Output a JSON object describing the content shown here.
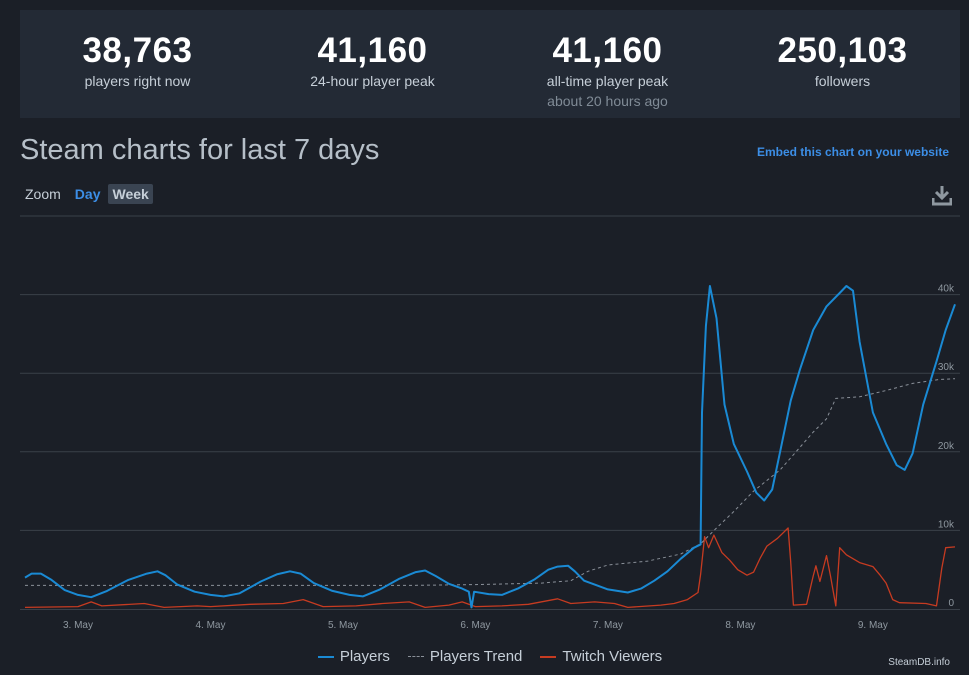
{
  "stats": [
    {
      "value": "38,763",
      "label": "players right now",
      "sub": ""
    },
    {
      "value": "41,160",
      "label": "24-hour player peak",
      "sub": ""
    },
    {
      "value": "41,160",
      "label": "all-time player peak",
      "sub": "about 20 hours ago"
    },
    {
      "value": "250,103",
      "label": "followers",
      "sub": ""
    }
  ],
  "heading": "Steam charts for last 7 days",
  "embed_link": "Embed this chart on your website",
  "zoom": {
    "label": "Zoom",
    "day": "Day",
    "week": "Week"
  },
  "legend": {
    "players": "Players",
    "trend": "Players Trend",
    "twitch": "Twitch Viewers"
  },
  "credit": "SteamDB.info",
  "colors": {
    "players": "#1a8ad4",
    "trend": "#8a9099",
    "twitch": "#c63b21",
    "background": "#1b1f27"
  },
  "chart_data": {
    "type": "line",
    "title": "Steam charts for last 7 days",
    "ylim": [
      0,
      50000
    ],
    "y_ticks": [
      {
        "value": 0,
        "label": "0"
      },
      {
        "value": 10000,
        "label": "10k"
      },
      {
        "value": 20000,
        "label": "20k"
      },
      {
        "value": 30000,
        "label": "30k"
      },
      {
        "value": 40000,
        "label": "40k"
      }
    ],
    "x_range": [
      2.6,
      9.62
    ],
    "x_ticks": [
      {
        "value": 3,
        "label": "3. May"
      },
      {
        "value": 4,
        "label": "4. May"
      },
      {
        "value": 5,
        "label": "5. May"
      },
      {
        "value": 6,
        "label": "6. May"
      },
      {
        "value": 7,
        "label": "7. May"
      },
      {
        "value": 8,
        "label": "8. May"
      },
      {
        "value": 9,
        "label": "9. May"
      }
    ],
    "series": [
      {
        "name": "Players",
        "key": "players",
        "points": [
          [
            2.6,
            4000
          ],
          [
            2.65,
            4500
          ],
          [
            2.72,
            4500
          ],
          [
            2.8,
            3700
          ],
          [
            2.9,
            2400
          ],
          [
            3.0,
            1800
          ],
          [
            3.1,
            1500
          ],
          [
            3.22,
            2300
          ],
          [
            3.38,
            3700
          ],
          [
            3.52,
            4500
          ],
          [
            3.6,
            4800
          ],
          [
            3.66,
            4300
          ],
          [
            3.75,
            3100
          ],
          [
            3.88,
            2200
          ],
          [
            4.0,
            1800
          ],
          [
            4.1,
            1600
          ],
          [
            4.22,
            2000
          ],
          [
            4.38,
            3500
          ],
          [
            4.5,
            4400
          ],
          [
            4.6,
            4800
          ],
          [
            4.68,
            4500
          ],
          [
            4.78,
            3300
          ],
          [
            4.92,
            2300
          ],
          [
            5.05,
            1800
          ],
          [
            5.15,
            1600
          ],
          [
            5.28,
            2500
          ],
          [
            5.42,
            3800
          ],
          [
            5.55,
            4700
          ],
          [
            5.62,
            4900
          ],
          [
            5.7,
            4200
          ],
          [
            5.8,
            3200
          ],
          [
            5.9,
            2600
          ],
          [
            5.95,
            2200
          ],
          [
            5.97,
            200
          ],
          [
            5.99,
            2200
          ],
          [
            6.1,
            1900
          ],
          [
            6.2,
            1800
          ],
          [
            6.32,
            2600
          ],
          [
            6.45,
            3800
          ],
          [
            6.55,
            5000
          ],
          [
            6.62,
            5400
          ],
          [
            6.7,
            5500
          ],
          [
            6.75,
            4800
          ],
          [
            6.82,
            3600
          ],
          [
            6.9,
            3100
          ],
          [
            7.0,
            2500
          ],
          [
            7.15,
            2100
          ],
          [
            7.25,
            2600
          ],
          [
            7.35,
            3600
          ],
          [
            7.45,
            4800
          ],
          [
            7.55,
            6400
          ],
          [
            7.65,
            7800
          ],
          [
            7.7,
            8200
          ],
          [
            7.71,
            25000
          ],
          [
            7.74,
            36000
          ],
          [
            7.77,
            41100
          ],
          [
            7.82,
            37000
          ],
          [
            7.88,
            26000
          ],
          [
            7.95,
            21000
          ],
          [
            8.05,
            17500
          ],
          [
            8.12,
            14800
          ],
          [
            8.18,
            13800
          ],
          [
            8.24,
            15200
          ],
          [
            8.3,
            20000
          ],
          [
            8.38,
            26500
          ],
          [
            8.45,
            30500
          ],
          [
            8.55,
            35500
          ],
          [
            8.65,
            38500
          ],
          [
            8.75,
            40200
          ],
          [
            8.8,
            41100
          ],
          [
            8.85,
            40500
          ],
          [
            8.9,
            34000
          ],
          [
            9.0,
            25000
          ],
          [
            9.1,
            21000
          ],
          [
            9.18,
            18300
          ],
          [
            9.24,
            17700
          ],
          [
            9.3,
            19800
          ],
          [
            9.38,
            26000
          ],
          [
            9.48,
            31500
          ],
          [
            9.55,
            35500
          ],
          [
            9.62,
            38763
          ]
        ]
      },
      {
        "name": "Players Trend",
        "key": "trend",
        "points": [
          [
            2.6,
            3000
          ],
          [
            3.5,
            3000
          ],
          [
            4.5,
            3000
          ],
          [
            5.5,
            3000
          ],
          [
            6.0,
            3100
          ],
          [
            6.5,
            3300
          ],
          [
            6.72,
            3600
          ],
          [
            6.85,
            4800
          ],
          [
            7.0,
            5600
          ],
          [
            7.3,
            6100
          ],
          [
            7.55,
            7000
          ],
          [
            7.7,
            8300
          ],
          [
            7.82,
            10300
          ],
          [
            7.95,
            12400
          ],
          [
            8.1,
            15000
          ],
          [
            8.3,
            17700
          ],
          [
            8.42,
            20000
          ],
          [
            8.55,
            22500
          ],
          [
            8.65,
            24200
          ],
          [
            8.72,
            26800
          ],
          [
            8.9,
            27000
          ],
          [
            9.1,
            27800
          ],
          [
            9.3,
            28700
          ],
          [
            9.5,
            29200
          ],
          [
            9.62,
            29300
          ]
        ]
      },
      {
        "name": "Twitch Viewers",
        "key": "twitch",
        "points": [
          [
            2.6,
            200
          ],
          [
            3.0,
            300
          ],
          [
            3.1,
            900
          ],
          [
            3.18,
            400
          ],
          [
            3.5,
            700
          ],
          [
            3.65,
            200
          ],
          [
            3.9,
            400
          ],
          [
            4.0,
            300
          ],
          [
            4.3,
            600
          ],
          [
            4.55,
            700
          ],
          [
            4.7,
            1200
          ],
          [
            4.85,
            300
          ],
          [
            5.1,
            400
          ],
          [
            5.3,
            700
          ],
          [
            5.5,
            900
          ],
          [
            5.62,
            200
          ],
          [
            5.8,
            500
          ],
          [
            5.9,
            900
          ],
          [
            6.0,
            300
          ],
          [
            6.2,
            400
          ],
          [
            6.4,
            600
          ],
          [
            6.62,
            1300
          ],
          [
            6.72,
            700
          ],
          [
            6.9,
            900
          ],
          [
            7.05,
            700
          ],
          [
            7.15,
            200
          ],
          [
            7.4,
            500
          ],
          [
            7.5,
            700
          ],
          [
            7.6,
            1200
          ],
          [
            7.68,
            2100
          ],
          [
            7.7,
            4400
          ],
          [
            7.73,
            9200
          ],
          [
            7.76,
            7800
          ],
          [
            7.8,
            9400
          ],
          [
            7.86,
            7200
          ],
          [
            7.92,
            6200
          ],
          [
            7.98,
            5000
          ],
          [
            8.05,
            4300
          ],
          [
            8.1,
            4700
          ],
          [
            8.15,
            6500
          ],
          [
            8.2,
            8000
          ],
          [
            8.28,
            9000
          ],
          [
            8.36,
            10300
          ],
          [
            8.38,
            6000
          ],
          [
            8.4,
            500
          ],
          [
            8.5,
            600
          ],
          [
            8.55,
            4200
          ],
          [
            8.57,
            5500
          ],
          [
            8.6,
            3500
          ],
          [
            8.65,
            6800
          ],
          [
            8.68,
            4200
          ],
          [
            8.72,
            400
          ],
          [
            8.75,
            7800
          ],
          [
            8.8,
            6900
          ],
          [
            8.9,
            5900
          ],
          [
            9.0,
            5400
          ],
          [
            9.05,
            4400
          ],
          [
            9.1,
            3300
          ],
          [
            9.15,
            1200
          ],
          [
            9.2,
            800
          ],
          [
            9.4,
            700
          ],
          [
            9.48,
            400
          ],
          [
            9.52,
            5200
          ],
          [
            9.55,
            7800
          ],
          [
            9.62,
            7900
          ]
        ]
      }
    ]
  }
}
